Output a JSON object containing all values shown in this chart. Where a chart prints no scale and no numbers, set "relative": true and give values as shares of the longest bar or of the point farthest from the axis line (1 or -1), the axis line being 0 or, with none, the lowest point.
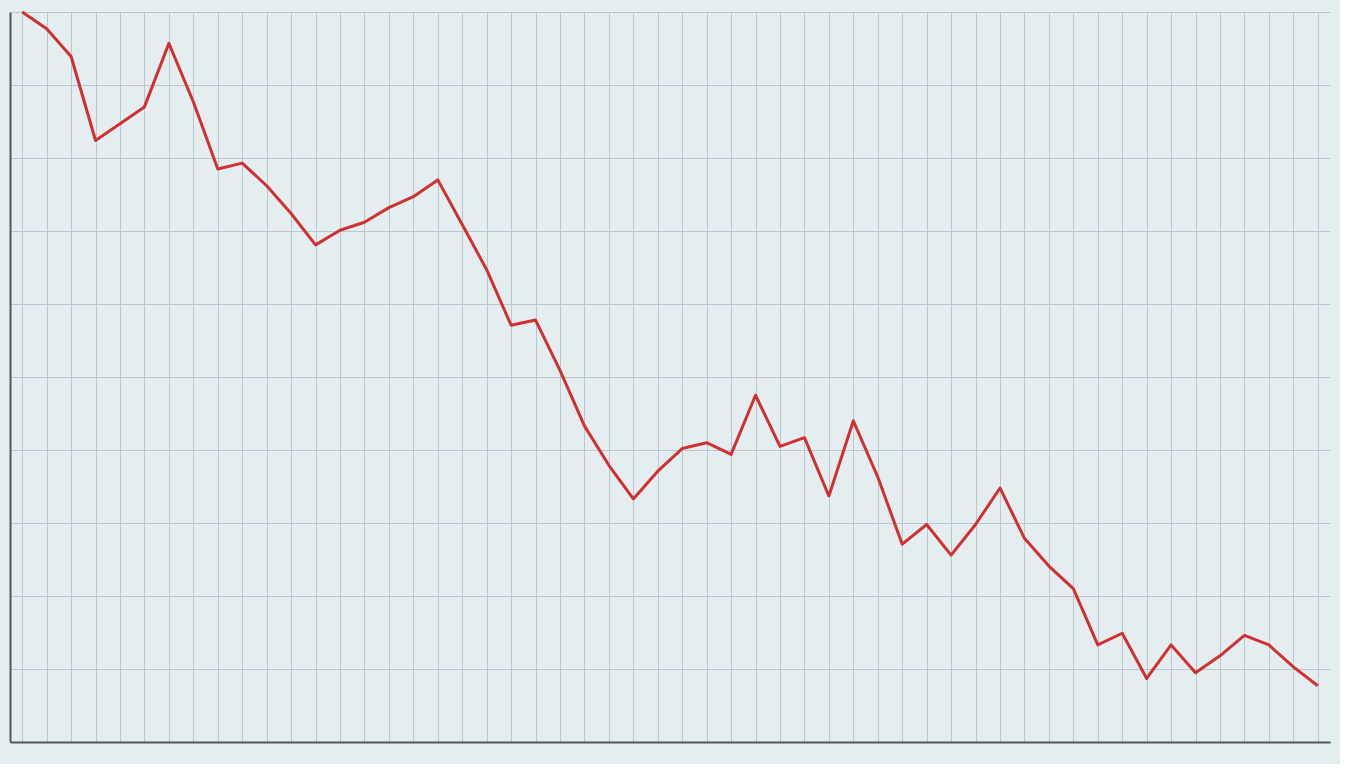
{
  "chart_data": {
    "type": "line",
    "relative": true,
    "color": "#d03030",
    "grid": true,
    "marker": "none",
    "line_style": "solid",
    "categories": [
      null,
      null,
      null,
      null,
      null,
      null,
      null,
      null,
      null,
      null,
      null,
      null,
      null,
      null,
      null,
      null,
      null,
      null,
      null,
      null,
      null,
      null,
      null,
      null,
      null,
      null,
      null,
      null,
      null,
      null,
      null,
      null,
      null,
      null,
      null,
      null,
      null,
      null,
      null,
      null,
      null,
      null,
      null,
      null,
      null,
      null,
      null,
      null,
      null,
      null,
      null,
      null,
      null,
      null
    ],
    "values": [
      1.0,
      0.977,
      0.939,
      0.824,
      0.847,
      0.87,
      0.957,
      0.877,
      0.785,
      0.793,
      0.762,
      0.724,
      0.681,
      0.701,
      0.712,
      0.732,
      0.747,
      0.77,
      0.709,
      0.647,
      0.571,
      0.578,
      0.509,
      0.433,
      0.379,
      0.333,
      0.371,
      0.402,
      0.41,
      0.394,
      0.475,
      0.405,
      0.417,
      0.337,
      0.44,
      0.363,
      0.271,
      0.298,
      0.256,
      0.298,
      0.348,
      0.279,
      0.241,
      0.21,
      0.133,
      0.149,
      0.087,
      0.133,
      0.095,
      0.118,
      0.146,
      0.133,
      0.103,
      0.077
    ]
  }
}
